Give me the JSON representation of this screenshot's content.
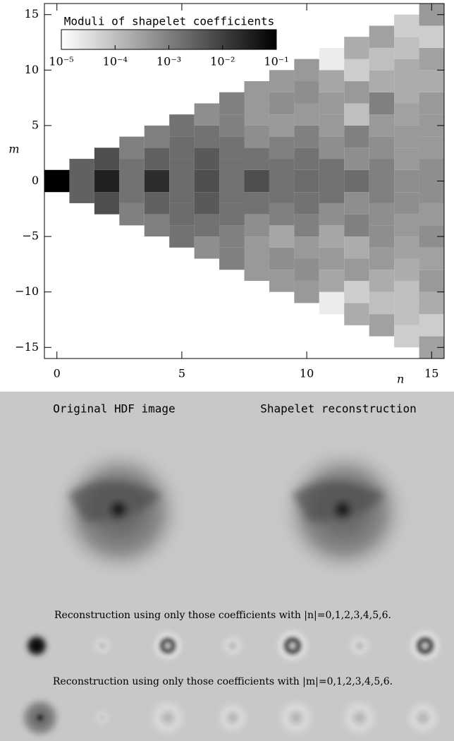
{
  "chart_data": {
    "type": "heatmap",
    "xlabel": "n",
    "ylabel": "m",
    "xlim": [
      -0.5,
      15.5
    ],
    "ylim": [
      -16,
      16
    ],
    "xticks": [
      0,
      5,
      10,
      15
    ],
    "yticks": [
      {
        "value": -15,
        "label": "−15"
      },
      {
        "value": -10,
        "label": "−10"
      },
      {
        "value": -5,
        "label": "−5"
      },
      0,
      5,
      10,
      15
    ],
    "values": [
      [
        0.1
      ],
      [
        0.003,
        0.003
      ],
      [
        0.006,
        0.03,
        0.006
      ],
      [
        0.001,
        0.0016,
        0.0016,
        0.001
      ],
      [
        0.001,
        0.003,
        0.02,
        0.003,
        0.001
      ],
      [
        0.0016,
        0.002,
        0.002,
        0.002,
        0.002,
        0.0016
      ],
      [
        0.0006,
        0.0016,
        0.004,
        0.006,
        0.004,
        0.0016,
        0.0006
      ],
      [
        0.001,
        0.001,
        0.0016,
        0.0016,
        0.0016,
        0.0016,
        0.001,
        0.001
      ],
      [
        0.0004,
        0.0004,
        0.0006,
        0.0016,
        0.006,
        0.0016,
        0.0006,
        0.0004,
        0.0004
      ],
      [
        0.0004,
        0.0006,
        0.00025,
        0.001,
        0.0016,
        0.0016,
        0.001,
        0.0004,
        0.0006,
        0.0004
      ],
      [
        0.0004,
        0.0006,
        0.0004,
        0.001,
        0.0016,
        0.002,
        0.0016,
        0.001,
        0.0004,
        0.0006,
        0.0004
      ],
      [
        2e-05,
        0.00025,
        0.0004,
        0.00025,
        0.0006,
        0.0016,
        0.0016,
        0.0006,
        0.0004,
        0.0004,
        0.00025,
        2e-05
      ],
      [
        0.0002,
        6e-05,
        0.0004,
        0.0002,
        0.001,
        0.0006,
        0.002,
        0.0006,
        0.001,
        0.0001,
        0.0004,
        6e-05,
        0.0002
      ],
      [
        0.0003,
        0.0001,
        0.0002,
        0.0004,
        0.0006,
        0.0006,
        0.001,
        0.001,
        0.0006,
        0.0004,
        0.001,
        0.0002,
        0.0001,
        0.0003
      ],
      [
        6e-05,
        0.0001,
        0.0001,
        0.0002,
        0.0003,
        0.0004,
        0.0006,
        0.0006,
        0.0004,
        0.0004,
        0.0003,
        0.0002,
        0.0002,
        0.0001,
        6e-05
      ],
      [
        0.0003,
        6e-05,
        0.0002,
        0.0004,
        0.0003,
        0.0006,
        0.0004,
        0.0006,
        0.0006,
        0.0004,
        0.0004,
        0.0004,
        0.0002,
        0.0003,
        6e-05,
        0.0004
      ]
    ],
    "colorbar": {
      "title": "Moduli of shapelet coefficients",
      "log": true,
      "lim": [
        1e-05,
        0.1
      ],
      "ticks": [
        {
          "value": 1e-05,
          "label": "10⁻⁵"
        },
        {
          "value": 0.0001,
          "label": "10⁻⁴"
        },
        {
          "value": 0.001,
          "label": "10⁻³"
        },
        {
          "value": 0.01,
          "label": "10⁻²"
        },
        {
          "value": 0.1,
          "label": "10⁻¹"
        }
      ]
    }
  },
  "panels": {
    "left_title": "Original HDF image",
    "right_title": "Shapelet reconstruction",
    "caption_n": "Reconstruction using only those coefficients with |n|=0,1,2,3,4,5,6.",
    "caption_m": "Reconstruction using only those coefficients with |m|=0,1,2,3,4,5,6."
  }
}
